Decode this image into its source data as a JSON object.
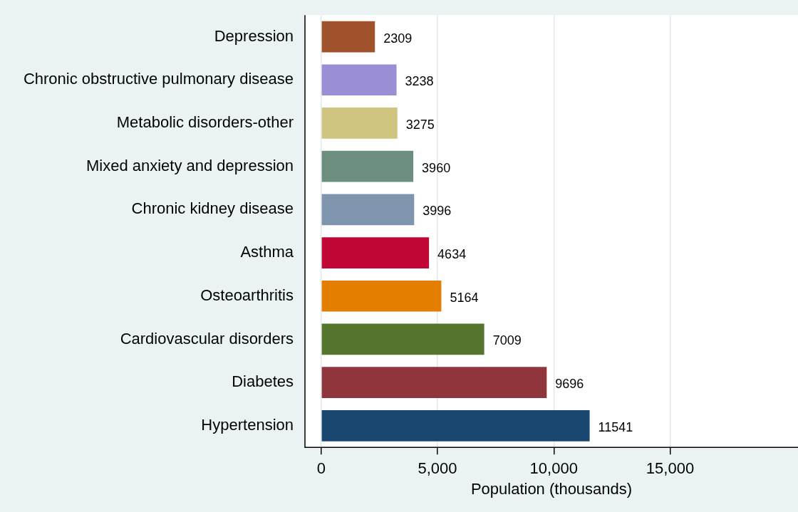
{
  "chart_data": {
    "type": "bar",
    "orientation": "horizontal",
    "xlabel": "Population (thousands)",
    "categories": [
      "Depression",
      "Chronic obstructive pulmonary disease",
      "Metabolic disorders-other",
      "Mixed anxiety and depression",
      "Chronic kidney disease",
      "Asthma",
      "Osteoarthritis",
      "Cardiovascular disorders",
      "Diabetes",
      "Hypertension"
    ],
    "values": [
      2309,
      3238,
      3275,
      3960,
      3996,
      4634,
      5164,
      7009,
      9696,
      11541
    ],
    "colors": [
      "#a0522d",
      "#9a8fd6",
      "#cfc480",
      "#6b8e7f",
      "#7f95ad",
      "#c10534",
      "#e37e00",
      "#55752f",
      "#90353b",
      "#1a476f"
    ],
    "xlim": [
      -700,
      20500
    ],
    "xticks": [
      0,
      {
        "value": 5000,
        "label": "5,000"
      },
      {
        "value": 10000,
        "label": "10,000"
      },
      {
        "value": 15000,
        "label": "15,000"
      }
    ],
    "grid": "x",
    "data_labels": true,
    "legend": false
  }
}
